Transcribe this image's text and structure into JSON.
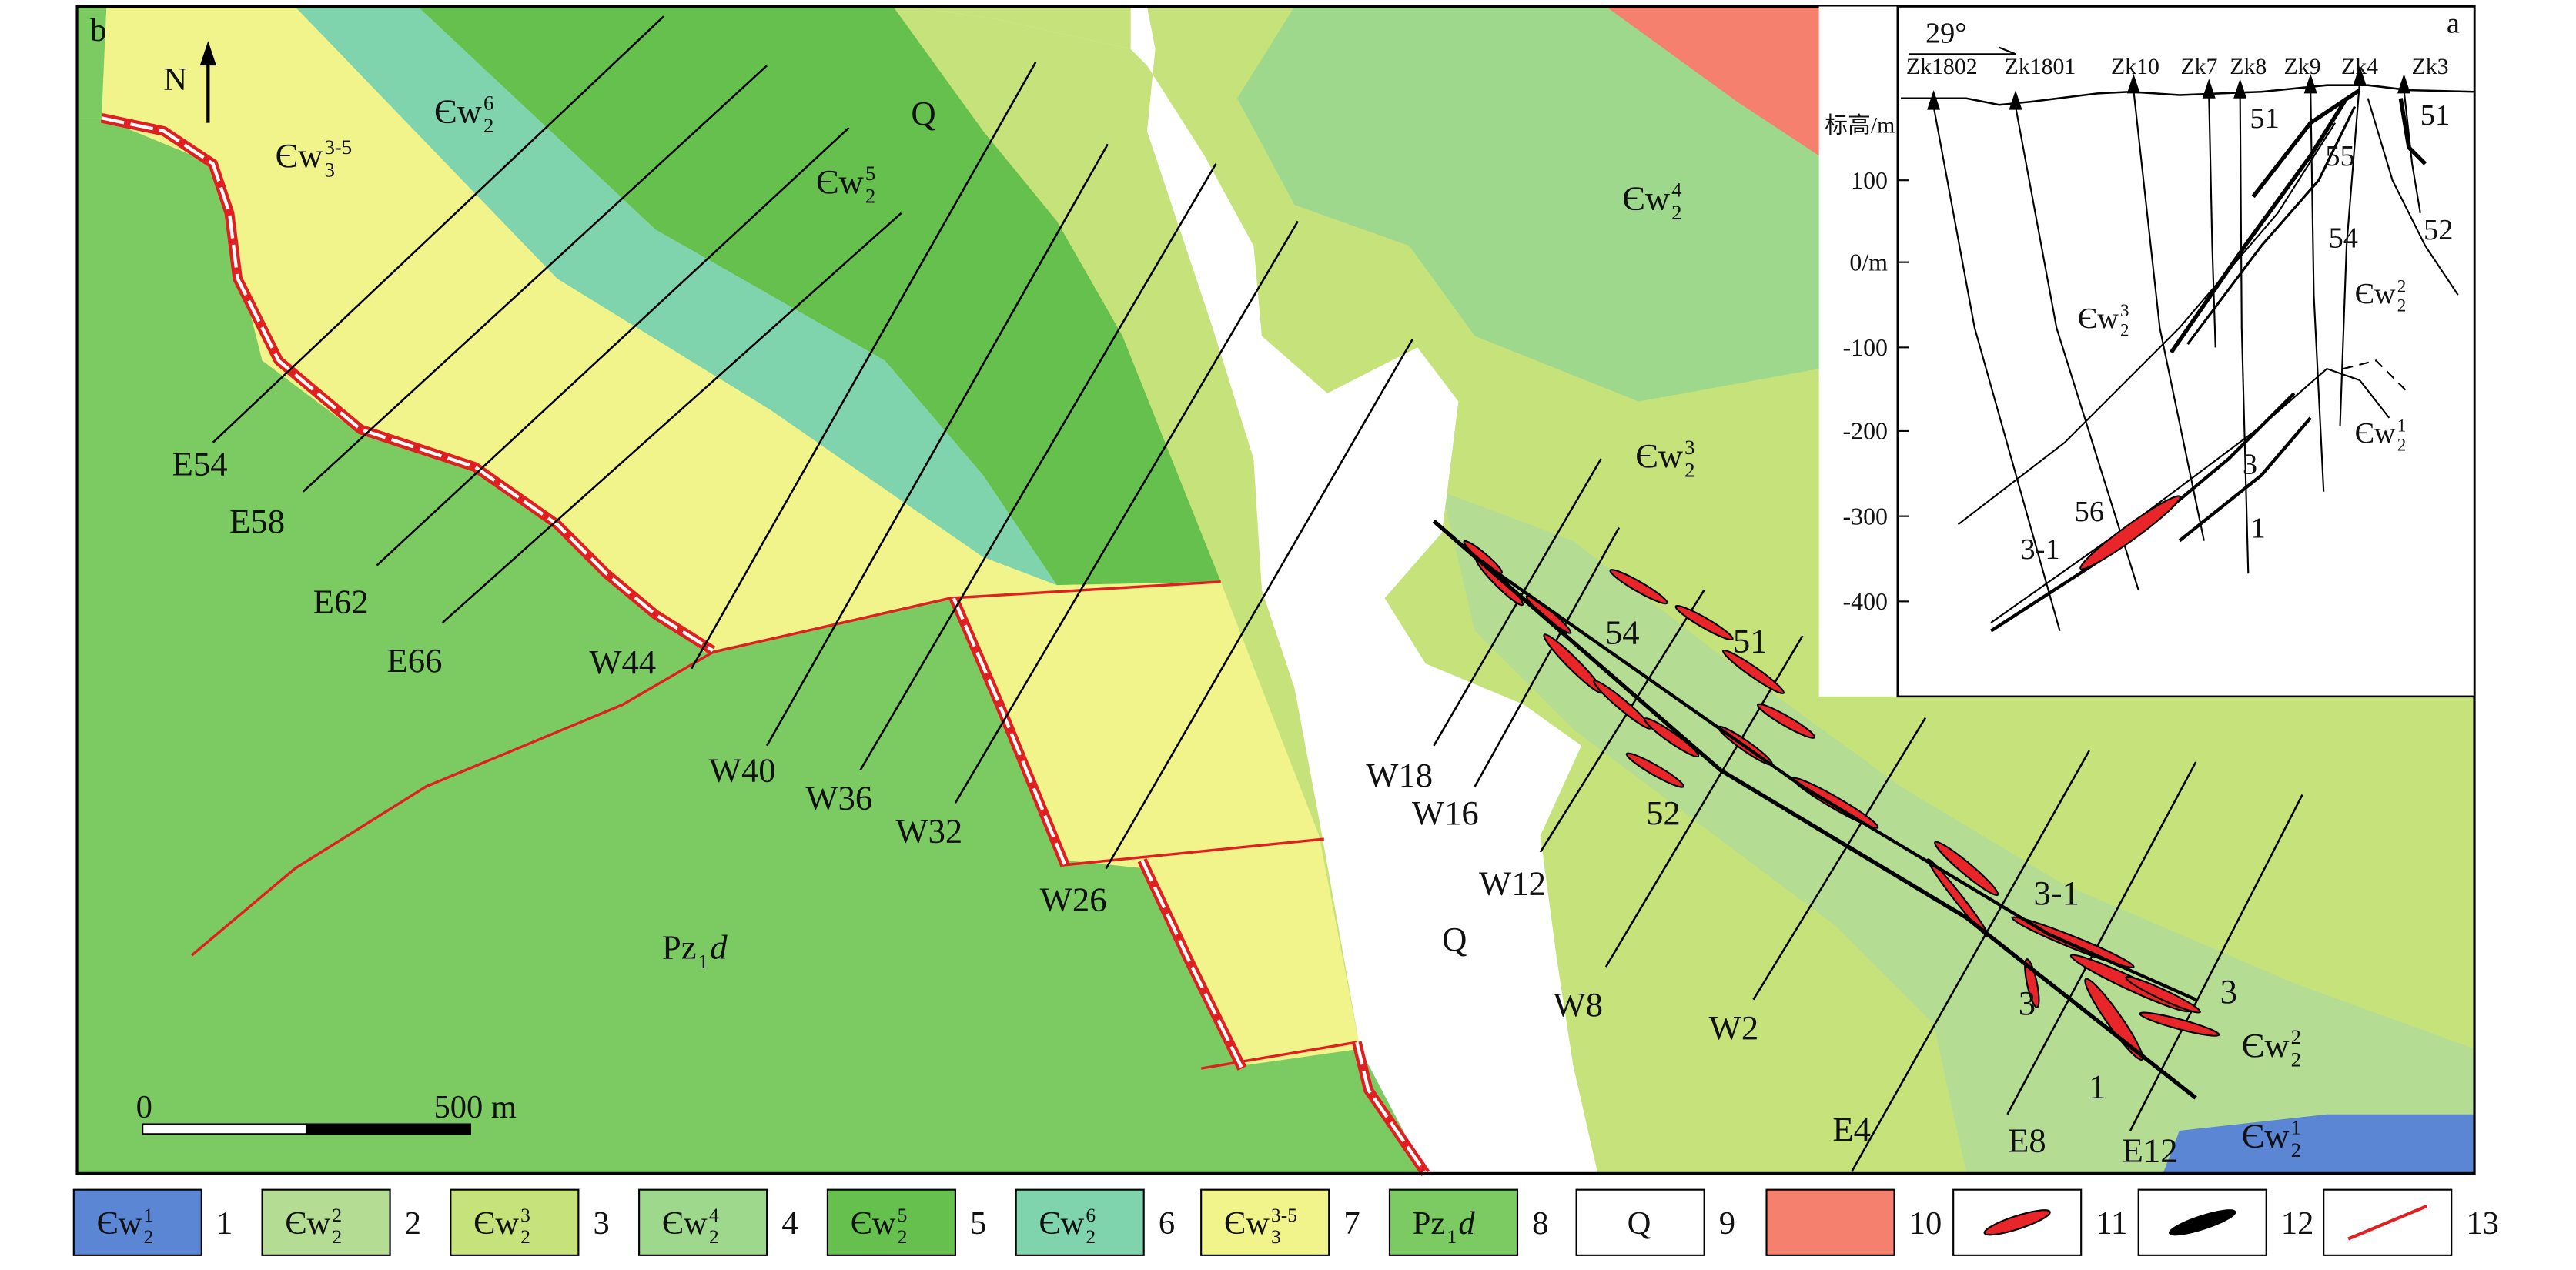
{
  "map": {
    "panel_label": "b",
    "north": "N",
    "units": [
      {
        "base": "Єw",
        "sup": "3-5",
        "sub": "3"
      },
      {
        "base": "Єw",
        "sup": "6",
        "sub": "2"
      },
      {
        "base": "Єw",
        "sup": "5",
        "sub": "2"
      },
      {
        "base": "Q"
      },
      {
        "base": "Єw",
        "sup": "4",
        "sub": "2"
      },
      {
        "base": "Єw",
        "sup": "3",
        "sub": "2"
      },
      {
        "base": "Pz",
        "sub": "1",
        "tail": "d"
      },
      {
        "base": "Q"
      },
      {
        "base": "Єw",
        "sup": "2",
        "sub": "2"
      },
      {
        "base": "Єw",
        "sup": "1",
        "sub": "2"
      }
    ],
    "lines": [
      "E54",
      "E58",
      "E62",
      "E66",
      "W44",
      "W40",
      "W36",
      "W32",
      "W26",
      "W18",
      "W16",
      "W12",
      "W8",
      "W2",
      "E4",
      "E8",
      "E12"
    ],
    "ore_labels": [
      "54",
      "51",
      "52",
      "3-1",
      "3",
      "3",
      "1"
    ],
    "scale": {
      "start": "0",
      "end": "500 m"
    }
  },
  "inset": {
    "panel_label": "a",
    "dip": "29°",
    "boreholes": [
      "Zk1802",
      "Zk1801",
      "Zk10",
      "Zk7",
      "Zk8",
      "Zk9",
      "Zk4",
      "Zk3"
    ],
    "axis_title": "标高/m",
    "elevation_labels": [
      "100",
      "0/m",
      "-100",
      "-200",
      "-300",
      "-400"
    ],
    "units": [
      {
        "base": "Єw",
        "sup": "3",
        "sub": "2"
      },
      {
        "base": "Єw",
        "sup": "2",
        "sub": "2"
      },
      {
        "base": "Єw",
        "sup": "1",
        "sub": "2"
      }
    ],
    "ore_labels": [
      "51",
      "55",
      "54",
      "52",
      "51",
      "56",
      "3-1",
      "3",
      "1"
    ]
  },
  "legend": [
    {
      "symbol": {
        "base": "Єw",
        "sup": "1",
        "sub": "2"
      },
      "number": "1"
    },
    {
      "symbol": {
        "base": "Єw",
        "sup": "2",
        "sub": "2"
      },
      "number": "2"
    },
    {
      "symbol": {
        "base": "Єw",
        "sup": "3",
        "sub": "2"
      },
      "number": "3"
    },
    {
      "symbol": {
        "base": "Єw",
        "sup": "4",
        "sub": "2"
      },
      "number": "4"
    },
    {
      "symbol": {
        "base": "Єw",
        "sup": "5",
        "sub": "2"
      },
      "number": "5"
    },
    {
      "symbol": {
        "base": "Єw",
        "sup": "6",
        "sub": "2"
      },
      "number": "6"
    },
    {
      "symbol": {
        "base": "Єw",
        "sup": "3-5",
        "sub": "3"
      },
      "number": "7"
    },
    {
      "symbol": {
        "base": "Pz",
        "sub": "1",
        "tail": "d"
      },
      "number": "8"
    },
    {
      "symbol": {
        "base": "Q"
      },
      "number": "9"
    },
    {
      "number": "10"
    },
    {
      "number": "11"
    },
    {
      "number": "12"
    },
    {
      "number": "13"
    }
  ]
}
